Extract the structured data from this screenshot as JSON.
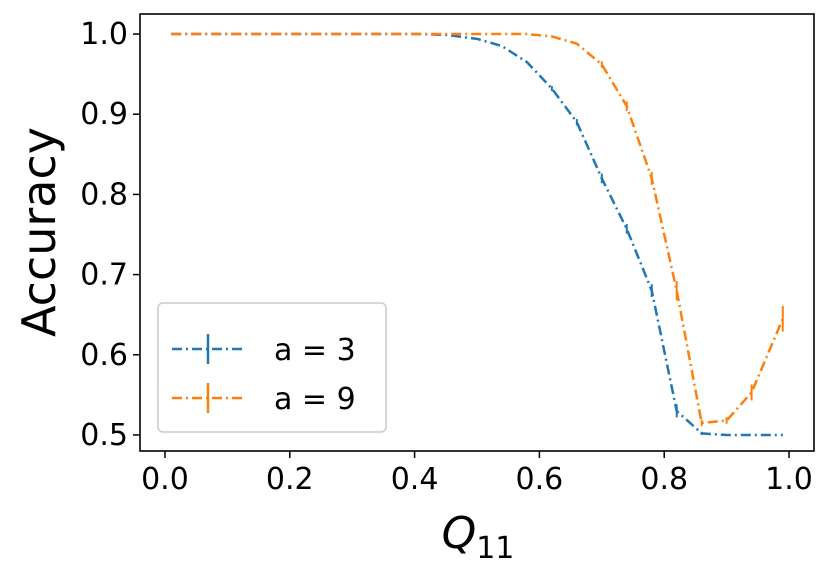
{
  "chart_data": {
    "type": "line",
    "title": "",
    "xlabel_main": "Q",
    "xlabel_sub": "11",
    "ylabel": "Accuracy",
    "xlim": [
      -0.04,
      1.04
    ],
    "ylim": [
      0.48,
      1.025
    ],
    "xticks": [
      0.0,
      0.2,
      0.4,
      0.6,
      0.8,
      1.0
    ],
    "xtick_labels": [
      "0.0",
      "0.2",
      "0.4",
      "0.6",
      "0.8",
      "1.0"
    ],
    "yticks": [
      0.5,
      0.6,
      0.7,
      0.8,
      0.9,
      1.0
    ],
    "ytick_labels": [
      "0.5",
      "0.6",
      "0.7",
      "0.8",
      "0.9",
      "1.0"
    ],
    "legend_position": "lower-left",
    "line_style": "dash-dot",
    "series": [
      {
        "name": "a = 3",
        "color": "#1f77b4",
        "x": [
          0.01,
          0.05,
          0.09,
          0.13,
          0.17,
          0.21,
          0.25,
          0.29,
          0.33,
          0.37,
          0.41,
          0.45,
          0.5,
          0.54,
          0.58,
          0.62,
          0.66,
          0.7,
          0.74,
          0.78,
          0.82,
          0.86,
          0.9,
          0.94,
          0.99
        ],
        "y": [
          1.0,
          1.0,
          1.0,
          1.0,
          1.0,
          1.0,
          1.0,
          1.0,
          1.0,
          1.0,
          1.0,
          0.999,
          0.994,
          0.985,
          0.965,
          0.932,
          0.89,
          0.82,
          0.757,
          0.68,
          0.53,
          0.502,
          0.5,
          0.5,
          0.5
        ],
        "err": [
          0,
          0,
          0,
          0,
          0,
          0,
          0,
          0,
          0,
          0,
          0,
          0,
          0,
          0,
          0,
          0.003,
          0.004,
          0.006,
          0.006,
          0.008,
          0.008,
          0.002,
          0,
          0,
          0
        ]
      },
      {
        "name": "a = 9",
        "color": "#ff7f0e",
        "x": [
          0.01,
          0.05,
          0.09,
          0.13,
          0.17,
          0.21,
          0.25,
          0.29,
          0.33,
          0.37,
          0.41,
          0.45,
          0.5,
          0.54,
          0.58,
          0.62,
          0.66,
          0.7,
          0.74,
          0.78,
          0.82,
          0.86,
          0.9,
          0.94,
          0.99
        ],
        "y": [
          1.0,
          1.0,
          1.0,
          1.0,
          1.0,
          1.0,
          1.0,
          1.0,
          1.0,
          1.0,
          1.0,
          1.0,
          1.0,
          1.0,
          1.0,
          0.997,
          0.988,
          0.962,
          0.91,
          0.82,
          0.68,
          0.515,
          0.518,
          0.553,
          0.645
        ],
        "err": [
          0,
          0,
          0,
          0,
          0,
          0,
          0,
          0,
          0,
          0,
          0,
          0,
          0,
          0,
          0,
          0,
          0,
          0.004,
          0.006,
          0.008,
          0.012,
          0.004,
          0.004,
          0.01,
          0.016
        ]
      }
    ]
  }
}
